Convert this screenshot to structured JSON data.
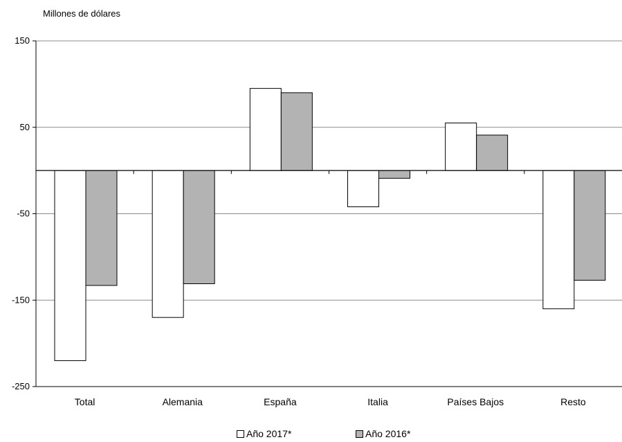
{
  "chart_data": {
    "type": "bar",
    "ylabel": "Millones de dólares",
    "categories": [
      "Total",
      "Alemania",
      "España",
      "Italia",
      "Países Bajos",
      "Resto"
    ],
    "series": [
      {
        "name": "Año 2017*",
        "color": "#ffffff",
        "values": [
          -220,
          -170,
          95,
          -42,
          55,
          -160
        ]
      },
      {
        "name": "Año 2016*",
        "color": "#b3b3b3",
        "values": [
          -133,
          -131,
          90,
          -9,
          41,
          -127
        ]
      }
    ],
    "ylim": [
      -250,
      150
    ],
    "yticks": [
      150,
      50,
      -50,
      -150,
      -250
    ],
    "ytick_labels": [
      "150",
      "50",
      "-50",
      "-150",
      "-250"
    ],
    "grid": true,
    "legend_position": "bottom"
  }
}
